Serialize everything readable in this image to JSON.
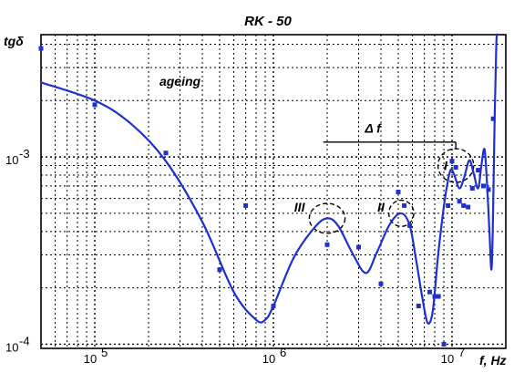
{
  "chart_data": {
    "type": "line",
    "title": "RK - 50",
    "ylabel": "tgδ",
    "xlabel": "f, Hz",
    "x_scale": "log",
    "y_scale": "log",
    "xlim": [
      50000,
      20000000
    ],
    "ylim": [
      9.5e-05,
      0.0045
    ],
    "grid": true,
    "x_ticks": [
      {
        "value": 100000,
        "label": "10",
        "exp": "5"
      },
      {
        "value": 1000000,
        "label": "10",
        "exp": "6"
      },
      {
        "value": 10000000,
        "label": "10",
        "exp": "7"
      }
    ],
    "y_ticks": [
      {
        "value": 0.001,
        "label": "10",
        "exp": "-3"
      },
      {
        "value": 0.0001,
        "label": "10",
        "exp": "-4"
      }
    ],
    "colors": {
      "series": "#1f2fd0",
      "axes": "#000000",
      "grid": "#000000",
      "annotation": "#000000"
    },
    "series": [
      {
        "style": "line",
        "x": [
          50000,
          100000,
          160000,
          250000,
          400000,
          600000,
          800000,
          900000,
          1000000,
          1300000,
          1700000,
          2000000,
          2300000,
          2800000,
          3300000,
          3800000,
          4500000,
          5200000,
          5800000,
          6300000,
          6800000,
          7300000,
          7800000,
          8300000,
          8700000,
          9200000,
          9800000,
          10300000,
          11000000,
          11700000,
          12500000,
          13200000,
          14000000,
          14600000,
          15200000,
          15700000,
          16200000,
          16600000,
          16900000,
          17300000,
          17700000,
          18000000
        ],
        "y": [
          0.0025,
          0.002,
          0.0015,
          0.00095,
          0.00045,
          0.00019,
          0.000135,
          0.000135,
          0.00016,
          0.00029,
          0.00042,
          0.00047,
          0.00043,
          0.0003,
          0.00024,
          0.00031,
          0.00044,
          0.0005,
          0.00043,
          0.00028,
          0.00018,
          0.00013,
          0.00015,
          0.00028,
          0.00042,
          0.00063,
          0.00085,
          0.0008,
          0.00068,
          0.00078,
          0.00096,
          0.00082,
          0.00068,
          0.0009,
          0.0011,
          0.00072,
          0.0004,
          0.00025,
          0.0004,
          0.0015,
          0.004,
          0.0045
        ]
      },
      {
        "style": "points",
        "x": [
          50000,
          100000,
          250000,
          500000,
          700000,
          1000000,
          2000000,
          3000000,
          4000000,
          5000000,
          5400000,
          5800000,
          6500000,
          7500000,
          8000000,
          8400000,
          9000000,
          9500000,
          10000000,
          10500000,
          11000000,
          11600000,
          12300000,
          13000000,
          14000000,
          15000000,
          16000000,
          17000000
        ],
        "y": [
          0.0038,
          0.0019,
          0.00105,
          0.00025,
          0.00055,
          0.00016,
          0.00034,
          0.00033,
          0.00021,
          0.00065,
          0.00055,
          0.00043,
          0.00016,
          0.00019,
          0.00018,
          0.00018,
          0.0001,
          0.00055,
          0.00095,
          0.00088,
          0.00058,
          0.00055,
          0.00054,
          0.00068,
          0.00085,
          0.0007,
          0.00067,
          0.0016
        ]
      }
    ],
    "annotations": [
      {
        "text": "ageing",
        "x": 300000,
        "y": 0.0024
      },
      {
        "text": "Δ f",
        "x": 3600000,
        "y": 0.00135
      },
      {
        "text": "I",
        "x": 9200000,
        "y": 0.00085
      },
      {
        "text": "II",
        "x": 4000000,
        "y": 0.00051
      },
      {
        "text": "III",
        "x": 1400000,
        "y": 0.00051
      }
    ],
    "circles": [
      {
        "x": 2000000,
        "y": 0.00047,
        "rx_decades": 0.1,
        "ry_decades": 0.08
      },
      {
        "x": 5200000,
        "y": 0.0005,
        "rx_decades": 0.07,
        "ry_decades": 0.07
      },
      {
        "x": 10500000,
        "y": 0.0009,
        "rx_decades": 0.1,
        "ry_decades": 0.09
      }
    ],
    "delta_f_bracket": {
      "x_start": 1900000,
      "x_end": 10500000,
      "y": 0.0012
    }
  }
}
